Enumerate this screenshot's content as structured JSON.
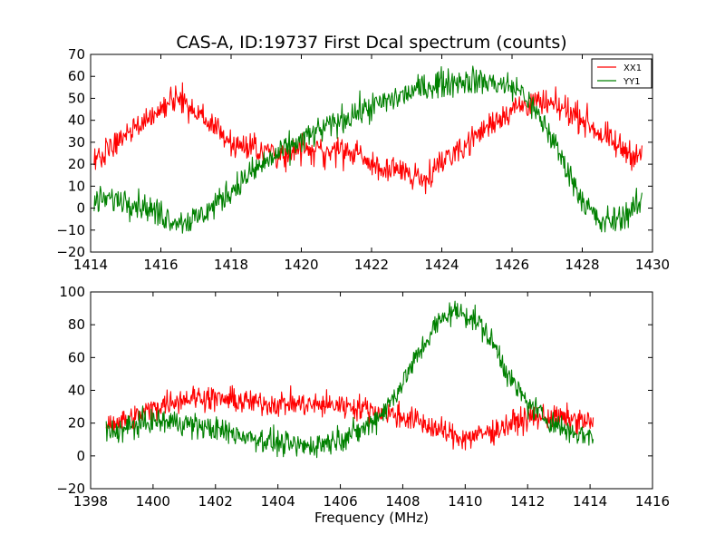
{
  "chart_data": [
    {
      "type": "line",
      "title": "CAS-A, ID:19737 First Dcal spectrum (counts)",
      "xlabel": "",
      "ylabel": "",
      "xlim": [
        1414,
        1430
      ],
      "ylim": [
        -20,
        70
      ],
      "xticks": [
        1414,
        1416,
        1418,
        1420,
        1422,
        1424,
        1426,
        1428,
        1430
      ],
      "yticks": [
        -20,
        -10,
        0,
        10,
        20,
        30,
        40,
        50,
        60,
        70
      ],
      "grid": false,
      "legend": "top-right",
      "x_range": [
        1414.1,
        1429.7
      ],
      "series": [
        {
          "name": "XX1",
          "color": "#ff0000",
          "points": [
            [
              1414.1,
              23
            ],
            [
              1414.5,
              26
            ],
            [
              1415.0,
              33
            ],
            [
              1415.5,
              40
            ],
            [
              1416.0,
              45
            ],
            [
              1416.3,
              50
            ],
            [
              1416.6,
              50
            ],
            [
              1417.0,
              44
            ],
            [
              1417.5,
              37
            ],
            [
              1418.0,
              30
            ],
            [
              1418.5,
              28
            ],
            [
              1419.0,
              26
            ],
            [
              1419.5,
              25
            ],
            [
              1420.0,
              26
            ],
            [
              1420.5,
              26
            ],
            [
              1421.0,
              26
            ],
            [
              1421.5,
              25
            ],
            [
              1422.0,
              20
            ],
            [
              1422.5,
              17
            ],
            [
              1423.0,
              16
            ],
            [
              1423.4,
              14
            ],
            [
              1423.8,
              17
            ],
            [
              1424.0,
              22
            ],
            [
              1424.5,
              27
            ],
            [
              1425.0,
              33
            ],
            [
              1425.5,
              40
            ],
            [
              1426.0,
              45
            ],
            [
              1426.5,
              48
            ],
            [
              1427.0,
              47
            ],
            [
              1427.5,
              45
            ],
            [
              1428.0,
              41
            ],
            [
              1428.5,
              34
            ],
            [
              1429.0,
              28
            ],
            [
              1429.7,
              23
            ]
          ]
        },
        {
          "name": "YY1",
          "color": "#008000",
          "points": [
            [
              1414.1,
              3
            ],
            [
              1414.5,
              4
            ],
            [
              1415.0,
              4
            ],
            [
              1415.5,
              1
            ],
            [
              1416.0,
              -3
            ],
            [
              1416.5,
              -6
            ],
            [
              1417.0,
              -5
            ],
            [
              1417.5,
              1
            ],
            [
              1418.0,
              8
            ],
            [
              1418.5,
              15
            ],
            [
              1419.0,
              21
            ],
            [
              1419.5,
              26
            ],
            [
              1420.0,
              31
            ],
            [
              1420.5,
              35
            ],
            [
              1421.0,
              39
            ],
            [
              1421.5,
              43
            ],
            [
              1422.0,
              46
            ],
            [
              1422.5,
              49
            ],
            [
              1423.0,
              52
            ],
            [
              1423.5,
              55
            ],
            [
              1424.0,
              57
            ],
            [
              1424.5,
              58
            ],
            [
              1425.0,
              58
            ],
            [
              1425.5,
              57
            ],
            [
              1426.0,
              55
            ],
            [
              1426.3,
              53
            ],
            [
              1426.6,
              45
            ],
            [
              1427.0,
              36
            ],
            [
              1427.5,
              20
            ],
            [
              1428.0,
              4
            ],
            [
              1428.5,
              -7
            ],
            [
              1429.0,
              -5
            ],
            [
              1429.7,
              2
            ]
          ]
        }
      ]
    },
    {
      "type": "line",
      "title": "",
      "xlabel": "Frequency (MHz)",
      "ylabel": "",
      "xlim": [
        1398,
        1416
      ],
      "ylim": [
        -20,
        100
      ],
      "xticks": [
        1398,
        1400,
        1402,
        1404,
        1406,
        1408,
        1410,
        1412,
        1414,
        1416
      ],
      "yticks": [
        -20,
        0,
        20,
        40,
        60,
        80,
        100
      ],
      "grid": false,
      "x_range": [
        1398.5,
        1414.1
      ],
      "series": [
        {
          "name": "XX1",
          "color": "#ff0000",
          "points": [
            [
              1398.5,
              20
            ],
            [
              1399.0,
              21
            ],
            [
              1399.5,
              24
            ],
            [
              1400.0,
              29
            ],
            [
              1400.5,
              33
            ],
            [
              1401.0,
              35
            ],
            [
              1401.5,
              36
            ],
            [
              1402.0,
              35
            ],
            [
              1402.5,
              34
            ],
            [
              1403.0,
              33
            ],
            [
              1403.5,
              32
            ],
            [
              1404.0,
              32
            ],
            [
              1404.5,
              32
            ],
            [
              1405.0,
              31
            ],
            [
              1405.5,
              31
            ],
            [
              1406.0,
              31
            ],
            [
              1406.5,
              30
            ],
            [
              1407.0,
              28
            ],
            [
              1407.5,
              26
            ],
            [
              1408.0,
              24
            ],
            [
              1408.5,
              21
            ],
            [
              1409.0,
              17
            ],
            [
              1409.5,
              13
            ],
            [
              1410.0,
              11
            ],
            [
              1410.5,
              13
            ],
            [
              1411.0,
              16
            ],
            [
              1411.5,
              20
            ],
            [
              1412.0,
              23
            ],
            [
              1412.5,
              24
            ],
            [
              1413.0,
              23
            ],
            [
              1413.5,
              22
            ],
            [
              1414.1,
              20
            ]
          ]
        },
        {
          "name": "YY1",
          "color": "#008000",
          "points": [
            [
              1398.5,
              14
            ],
            [
              1399.0,
              16
            ],
            [
              1399.5,
              19
            ],
            [
              1400.0,
              21
            ],
            [
              1400.5,
              21
            ],
            [
              1401.0,
              20
            ],
            [
              1401.5,
              18
            ],
            [
              1402.0,
              16
            ],
            [
              1402.5,
              14
            ],
            [
              1403.0,
              12
            ],
            [
              1403.5,
              10
            ],
            [
              1404.0,
              8
            ],
            [
              1404.5,
              6
            ],
            [
              1405.0,
              6
            ],
            [
              1405.5,
              8
            ],
            [
              1406.0,
              11
            ],
            [
              1406.5,
              14
            ],
            [
              1407.0,
              20
            ],
            [
              1407.5,
              30
            ],
            [
              1408.0,
              45
            ],
            [
              1408.5,
              62
            ],
            [
              1409.0,
              78
            ],
            [
              1409.5,
              88
            ],
            [
              1410.0,
              87
            ],
            [
              1410.5,
              80
            ],
            [
              1411.0,
              65
            ],
            [
              1411.5,
              45
            ],
            [
              1412.0,
              32
            ],
            [
              1412.5,
              24
            ],
            [
              1413.0,
              18
            ],
            [
              1413.5,
              14
            ],
            [
              1414.1,
              12
            ]
          ]
        }
      ]
    }
  ]
}
